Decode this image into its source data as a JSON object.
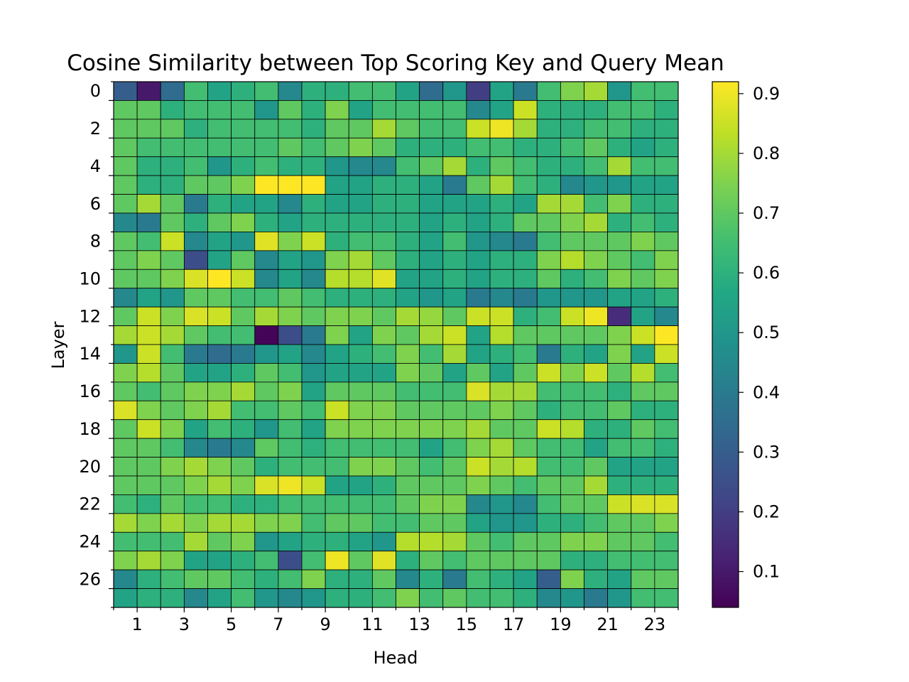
{
  "chart_data": {
    "type": "heatmap",
    "title": "Cosine Similarity between Top Scoring Key and Query Mean",
    "xlabel": "Head",
    "ylabel": "Layer",
    "colormap": "viridis",
    "x_tick_labels": [
      "1",
      "3",
      "5",
      "7",
      "9",
      "11",
      "13",
      "15",
      "17",
      "19",
      "21",
      "23"
    ],
    "y_tick_labels": [
      "0",
      "2",
      "4",
      "6",
      "8",
      "10",
      "12",
      "14",
      "16",
      "18",
      "20",
      "22",
      "24",
      "26"
    ],
    "colorbar_tick_labels": [
      "0.1",
      "0.2",
      "0.3",
      "0.4",
      "0.5",
      "0.6",
      "0.7",
      "0.8",
      "0.9"
    ],
    "colorbar_range": [
      0.04,
      0.92
    ],
    "x": [
      0,
      1,
      2,
      3,
      4,
      5,
      6,
      7,
      8,
      9,
      10,
      11,
      12,
      13,
      14,
      15,
      16,
      17,
      18,
      19,
      20,
      21,
      22,
      23
    ],
    "y": [
      0,
      1,
      2,
      3,
      4,
      5,
      6,
      7,
      8,
      9,
      10,
      11,
      12,
      13,
      14,
      15,
      16,
      17,
      18,
      19,
      20,
      21,
      22,
      23,
      24,
      25,
      26,
      27
    ],
    "values": [
      [
        0.3,
        0.1,
        0.35,
        0.65,
        0.55,
        0.6,
        0.65,
        0.45,
        0.6,
        0.6,
        0.65,
        0.65,
        0.55,
        0.35,
        0.5,
        0.2,
        0.55,
        0.4,
        0.65,
        0.75,
        0.8,
        0.5,
        0.65,
        0.65
      ],
      [
        0.7,
        0.7,
        0.6,
        0.65,
        0.65,
        0.65,
        0.5,
        0.7,
        0.6,
        0.75,
        0.55,
        0.65,
        0.65,
        0.65,
        0.65,
        0.45,
        0.55,
        0.85,
        0.6,
        0.6,
        0.6,
        0.65,
        0.65,
        0.6
      ],
      [
        0.7,
        0.7,
        0.7,
        0.6,
        0.65,
        0.65,
        0.65,
        0.65,
        0.6,
        0.7,
        0.7,
        0.8,
        0.7,
        0.65,
        0.65,
        0.85,
        0.9,
        0.8,
        0.6,
        0.6,
        0.65,
        0.65,
        0.6,
        0.6
      ],
      [
        0.7,
        0.65,
        0.65,
        0.65,
        0.65,
        0.65,
        0.65,
        0.7,
        0.65,
        0.7,
        0.75,
        0.7,
        0.6,
        0.6,
        0.6,
        0.65,
        0.65,
        0.6,
        0.6,
        0.65,
        0.7,
        0.6,
        0.55,
        0.6
      ],
      [
        0.7,
        0.6,
        0.6,
        0.65,
        0.5,
        0.6,
        0.65,
        0.6,
        0.6,
        0.5,
        0.45,
        0.45,
        0.65,
        0.7,
        0.8,
        0.6,
        0.7,
        0.65,
        0.6,
        0.6,
        0.65,
        0.8,
        0.65,
        0.65
      ],
      [
        0.7,
        0.6,
        0.6,
        0.7,
        0.7,
        0.75,
        0.92,
        0.92,
        0.92,
        0.55,
        0.55,
        0.6,
        0.6,
        0.55,
        0.4,
        0.7,
        0.8,
        0.65,
        0.6,
        0.45,
        0.5,
        0.5,
        0.55,
        0.55
      ],
      [
        0.7,
        0.8,
        0.7,
        0.4,
        0.6,
        0.55,
        0.55,
        0.45,
        0.6,
        0.55,
        0.55,
        0.6,
        0.6,
        0.55,
        0.55,
        0.55,
        0.6,
        0.55,
        0.8,
        0.8,
        0.65,
        0.75,
        0.6,
        0.6
      ],
      [
        0.45,
        0.4,
        0.7,
        0.6,
        0.7,
        0.75,
        0.6,
        0.55,
        0.6,
        0.6,
        0.6,
        0.6,
        0.6,
        0.55,
        0.6,
        0.55,
        0.6,
        0.7,
        0.7,
        0.75,
        0.8,
        0.6,
        0.65,
        0.6
      ],
      [
        0.7,
        0.65,
        0.85,
        0.45,
        0.55,
        0.5,
        0.88,
        0.75,
        0.85,
        0.6,
        0.65,
        0.65,
        0.6,
        0.55,
        0.65,
        0.5,
        0.45,
        0.4,
        0.65,
        0.7,
        0.7,
        0.7,
        0.75,
        0.7
      ],
      [
        0.7,
        0.75,
        0.7,
        0.25,
        0.55,
        0.7,
        0.45,
        0.55,
        0.5,
        0.75,
        0.8,
        0.7,
        0.6,
        0.55,
        0.6,
        0.55,
        0.6,
        0.6,
        0.75,
        0.82,
        0.75,
        0.7,
        0.65,
        0.75
      ],
      [
        0.7,
        0.7,
        0.75,
        0.87,
        0.92,
        0.85,
        0.45,
        0.55,
        0.45,
        0.82,
        0.82,
        0.88,
        0.55,
        0.55,
        0.6,
        0.55,
        0.6,
        0.6,
        0.7,
        0.6,
        0.65,
        0.75,
        0.7,
        0.75
      ],
      [
        0.45,
        0.55,
        0.5,
        0.7,
        0.7,
        0.65,
        0.65,
        0.7,
        0.65,
        0.6,
        0.6,
        0.6,
        0.55,
        0.5,
        0.55,
        0.4,
        0.45,
        0.4,
        0.5,
        0.5,
        0.5,
        0.55,
        0.55,
        0.6
      ],
      [
        0.7,
        0.85,
        0.75,
        0.87,
        0.85,
        0.7,
        0.8,
        0.75,
        0.7,
        0.75,
        0.75,
        0.7,
        0.8,
        0.78,
        0.7,
        0.85,
        0.85,
        0.6,
        0.65,
        0.85,
        0.9,
        0.15,
        0.55,
        0.45
      ],
      [
        0.8,
        0.85,
        0.8,
        0.7,
        0.65,
        0.65,
        0.05,
        0.25,
        0.4,
        0.75,
        0.55,
        0.75,
        0.7,
        0.8,
        0.85,
        0.55,
        0.82,
        0.7,
        0.7,
        0.7,
        0.7,
        0.75,
        0.85,
        0.92
      ],
      [
        0.5,
        0.85,
        0.65,
        0.4,
        0.35,
        0.4,
        0.5,
        0.55,
        0.45,
        0.55,
        0.6,
        0.65,
        0.75,
        0.65,
        0.8,
        0.55,
        0.6,
        0.65,
        0.4,
        0.6,
        0.55,
        0.75,
        0.55,
        0.85
      ],
      [
        0.75,
        0.82,
        0.7,
        0.55,
        0.55,
        0.6,
        0.7,
        0.65,
        0.5,
        0.55,
        0.55,
        0.55,
        0.75,
        0.7,
        0.55,
        0.7,
        0.55,
        0.7,
        0.85,
        0.75,
        0.85,
        0.7,
        0.82,
        0.65
      ],
      [
        0.7,
        0.65,
        0.7,
        0.75,
        0.75,
        0.8,
        0.7,
        0.75,
        0.55,
        0.7,
        0.7,
        0.7,
        0.65,
        0.65,
        0.65,
        0.87,
        0.8,
        0.8,
        0.65,
        0.65,
        0.65,
        0.6,
        0.7,
        0.7
      ],
      [
        0.87,
        0.75,
        0.7,
        0.75,
        0.8,
        0.65,
        0.65,
        0.7,
        0.65,
        0.85,
        0.75,
        0.75,
        0.7,
        0.7,
        0.7,
        0.7,
        0.75,
        0.7,
        0.6,
        0.65,
        0.65,
        0.7,
        0.6,
        0.6
      ],
      [
        0.7,
        0.85,
        0.75,
        0.55,
        0.65,
        0.6,
        0.5,
        0.65,
        0.55,
        0.75,
        0.75,
        0.75,
        0.75,
        0.75,
        0.75,
        0.8,
        0.7,
        0.7,
        0.85,
        0.82,
        0.6,
        0.6,
        0.7,
        0.65
      ],
      [
        0.7,
        0.7,
        0.65,
        0.45,
        0.4,
        0.45,
        0.7,
        0.65,
        0.6,
        0.65,
        0.65,
        0.65,
        0.65,
        0.55,
        0.65,
        0.75,
        0.8,
        0.7,
        0.65,
        0.65,
        0.55,
        0.65,
        0.65,
        0.6
      ],
      [
        0.7,
        0.7,
        0.75,
        0.8,
        0.75,
        0.7,
        0.6,
        0.65,
        0.65,
        0.65,
        0.75,
        0.75,
        0.7,
        0.65,
        0.7,
        0.85,
        0.8,
        0.82,
        0.65,
        0.65,
        0.7,
        0.55,
        0.55,
        0.55
      ],
      [
        0.7,
        0.7,
        0.7,
        0.75,
        0.8,
        0.75,
        0.87,
        0.9,
        0.85,
        0.55,
        0.55,
        0.6,
        0.7,
        0.7,
        0.7,
        0.75,
        0.7,
        0.65,
        0.7,
        0.7,
        0.8,
        0.6,
        0.6,
        0.6
      ],
      [
        0.65,
        0.6,
        0.7,
        0.65,
        0.65,
        0.6,
        0.6,
        0.65,
        0.65,
        0.65,
        0.65,
        0.65,
        0.7,
        0.75,
        0.75,
        0.45,
        0.5,
        0.45,
        0.65,
        0.7,
        0.7,
        0.85,
        0.87,
        0.87
      ],
      [
        0.8,
        0.75,
        0.8,
        0.75,
        0.8,
        0.8,
        0.75,
        0.75,
        0.65,
        0.7,
        0.7,
        0.65,
        0.65,
        0.7,
        0.7,
        0.55,
        0.5,
        0.5,
        0.6,
        0.6,
        0.65,
        0.7,
        0.7,
        0.75
      ],
      [
        0.65,
        0.65,
        0.65,
        0.8,
        0.7,
        0.75,
        0.5,
        0.55,
        0.6,
        0.6,
        0.55,
        0.5,
        0.82,
        0.82,
        0.8,
        0.7,
        0.65,
        0.7,
        0.7,
        0.75,
        0.75,
        0.7,
        0.7,
        0.65
      ],
      [
        0.75,
        0.8,
        0.75,
        0.55,
        0.55,
        0.6,
        0.65,
        0.25,
        0.65,
        0.9,
        0.7,
        0.88,
        0.6,
        0.7,
        0.65,
        0.7,
        0.7,
        0.7,
        0.7,
        0.6,
        0.6,
        0.65,
        0.65,
        0.65
      ],
      [
        0.45,
        0.6,
        0.65,
        0.7,
        0.7,
        0.65,
        0.6,
        0.65,
        0.75,
        0.6,
        0.6,
        0.7,
        0.45,
        0.6,
        0.4,
        0.65,
        0.6,
        0.55,
        0.3,
        0.75,
        0.6,
        0.55,
        0.7,
        0.7
      ],
      [
        0.55,
        0.6,
        0.6,
        0.45,
        0.55,
        0.65,
        0.5,
        0.45,
        0.5,
        0.6,
        0.6,
        0.65,
        0.75,
        0.65,
        0.7,
        0.65,
        0.65,
        0.6,
        0.45,
        0.5,
        0.4,
        0.5,
        0.65,
        0.65
      ]
    ]
  }
}
